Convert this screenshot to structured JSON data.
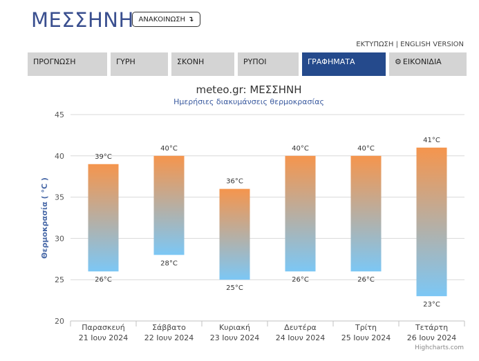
{
  "header": {
    "title": "ΜΕΣΣΗΝΗ",
    "announce_label": "ΑΝΑΚΟΙΝΩΣΗ",
    "announce_icon": "↴",
    "print_link": "ΕΚΤΥΠΩΣΗ",
    "separator": "|",
    "english_link": "ENGLISH VERSION"
  },
  "nav": {
    "tabs": [
      {
        "label": "ΠΡΟΓΝΩΣΗ"
      },
      {
        "label": "ΓΥΡΗ"
      },
      {
        "label": "ΣΚΟΝΗ"
      },
      {
        "label": "ΡΥΠΟΙ"
      },
      {
        "label": "ΓΡΑΦΗΜΑΤΑ"
      },
      {
        "label": "ΕΙΚΟΝΙΔΙΑ",
        "icon": "gear-icon"
      }
    ],
    "active_index": 4
  },
  "colors": {
    "accent": "#254a8c",
    "bar_top": "#f5954d",
    "bar_bottom": "#7cc7f5",
    "title_text": "#3a4f8f"
  },
  "chart_data": {
    "type": "bar",
    "title": "meteo.gr: ΜΕΣΣΗΝΗ",
    "subtitle": "Ημερήσιες διακυμάνσεις θερμοκρασίας",
    "ylabel": "Θερμοκρασία ( °C )",
    "ylim": [
      20,
      45
    ],
    "yticks": [
      20,
      25,
      30,
      35,
      40,
      45
    ],
    "grid": true,
    "categories": [
      {
        "day": "Παρασκευή",
        "date": "21 Ιουν 2024"
      },
      {
        "day": "Σάββατο",
        "date": "22 Ιουν 2024"
      },
      {
        "day": "Κυριακή",
        "date": "23 Ιουν 2024"
      },
      {
        "day": "Δευτέρα",
        "date": "24 Ιουν 2024"
      },
      {
        "day": "Τρίτη",
        "date": "25 Ιουν 2024"
      },
      {
        "day": "Τετάρτη",
        "date": "26 Ιουν 2024"
      }
    ],
    "series": [
      {
        "low": [
          26,
          28,
          25,
          26,
          26,
          23
        ],
        "high": [
          39,
          40,
          36,
          40,
          40,
          41
        ]
      }
    ],
    "unit": "°C",
    "credits": "Highcharts.com"
  }
}
